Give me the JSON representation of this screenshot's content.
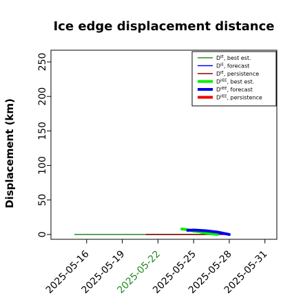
{
  "chart_data": {
    "type": "line",
    "title": "Ice edge displacement distance",
    "ylabel": "Displacement (km)",
    "xlabel": "",
    "ylim": [
      0,
      260
    ],
    "xlim": [
      "2025-05-13",
      "2025-06-01"
    ],
    "x_ticks": [
      "2025-05-16",
      "2025-05-19",
      "2025-05-22",
      "2025-05-25",
      "2025-05-28",
      "2025-05-31"
    ],
    "highlighted_tick": "2025-05-22",
    "highlight_color": "#228B22",
    "y_ticks": [
      0,
      50,
      100,
      150,
      200,
      250
    ],
    "grid": false,
    "legend_position": "top-right",
    "legend": [
      {
        "base": "D",
        "sup": "IE",
        "text": ", best est.",
        "color": "#228B22",
        "width": "thin"
      },
      {
        "base": "D",
        "sup": "IE",
        "text": ", forecast",
        "color": "#0000EE",
        "width": "thin"
      },
      {
        "base": "D",
        "sup": "IE",
        "text": ", persistence",
        "color": "#8B0000",
        "width": "thin"
      },
      {
        "base": "D",
        "sup": "IIEE",
        "text": ", best est.",
        "color": "#00EE00",
        "width": "thick"
      },
      {
        "base": "D",
        "sup": "IIEE",
        "text": ", forecast",
        "color": "#0000EE",
        "width": "thick"
      },
      {
        "base": "D",
        "sup": "IIEE",
        "text": ", persistence",
        "color": "#EE0000",
        "width": "thick"
      }
    ],
    "series": [
      {
        "color": "#228B22",
        "width": "thin",
        "x": [
          "2025-05-15",
          "2025-05-27"
        ],
        "y": [
          0,
          0
        ]
      },
      {
        "color": "#8B0000",
        "width": "thin",
        "x": [
          "2025-05-21",
          "2025-05-28"
        ],
        "y": [
          0,
          0
        ]
      },
      {
        "color": "#00EE00",
        "width": "thick",
        "x": [
          "2025-05-24",
          "2025-05-24.5",
          "2025-05-25",
          "2025-05-25.5",
          "2025-05-26",
          "2025-05-26.5",
          "2025-05-27"
        ],
        "y": [
          8,
          7,
          5,
          4,
          2,
          1,
          0
        ]
      },
      {
        "color": "#0000EE",
        "width": "thick",
        "x": [
          "2025-05-24.5",
          "2025-05-25",
          "2025-05-26",
          "2025-05-27",
          "2025-05-28"
        ],
        "y": [
          6,
          6.5,
          5.5,
          3.5,
          0
        ]
      }
    ]
  }
}
